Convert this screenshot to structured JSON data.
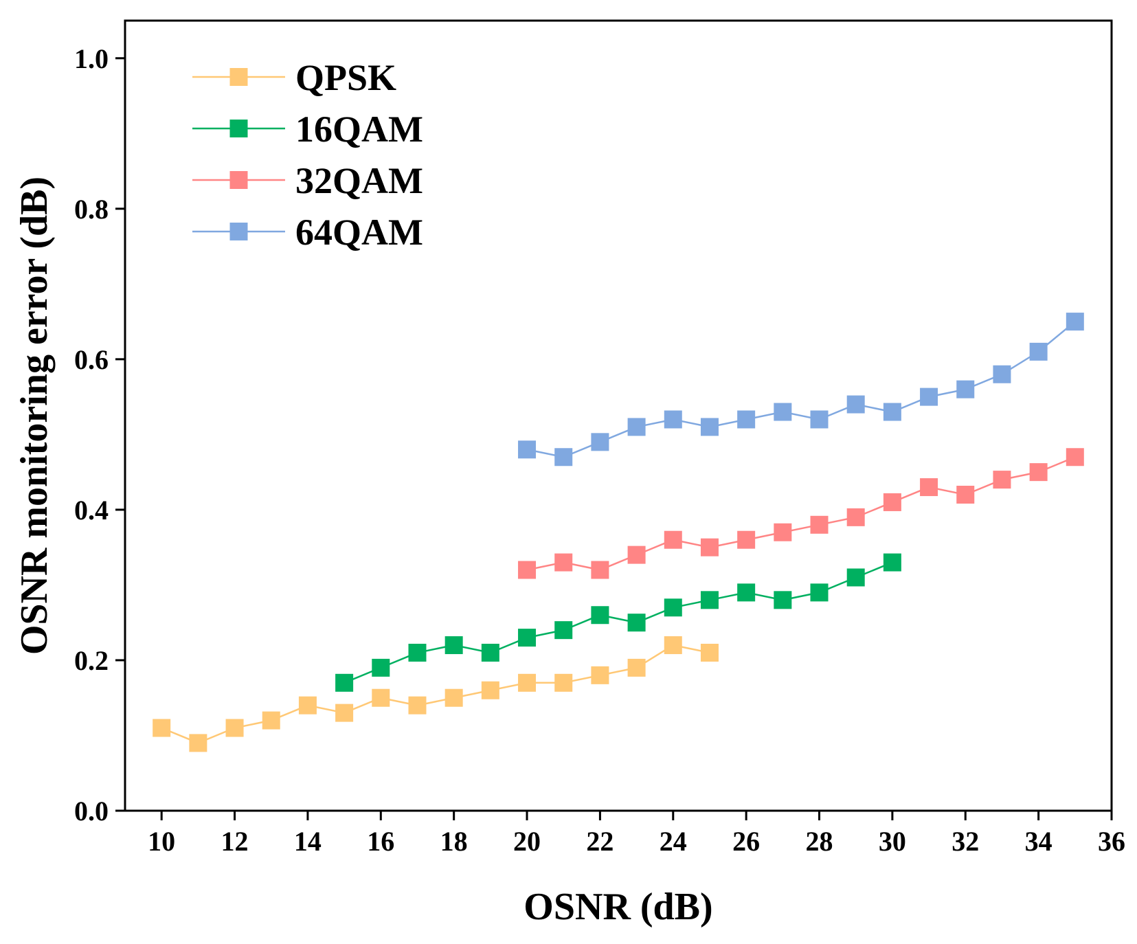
{
  "chart_data": {
    "type": "line",
    "title": "",
    "xlabel": "OSNR (dB)",
    "ylabel": "OSNR monitoring error (dB)",
    "xlim": [
      9,
      36
    ],
    "ylim": [
      0,
      1.05
    ],
    "xticks": [
      10,
      12,
      14,
      16,
      18,
      20,
      22,
      24,
      26,
      28,
      30,
      32,
      34,
      36
    ],
    "yticks": [
      0.0,
      0.2,
      0.4,
      0.6,
      0.8,
      1.0
    ],
    "xtick_labels": [
      "10",
      "12",
      "14",
      "16",
      "18",
      "20",
      "22",
      "24",
      "26",
      "28",
      "30",
      "32",
      "34",
      "36"
    ],
    "ytick_labels": [
      "0.0",
      "0.2",
      "0.4",
      "0.6",
      "0.8",
      "1.0"
    ],
    "grid": false,
    "legend_position": "top-left",
    "series": [
      {
        "name": "QPSK",
        "color": "#FFC875",
        "marker": "square",
        "x": [
          10,
          11,
          12,
          13,
          14,
          15,
          16,
          17,
          18,
          19,
          20,
          21,
          22,
          23,
          24,
          25
        ],
        "values": [
          0.11,
          0.09,
          0.11,
          0.12,
          0.14,
          0.13,
          0.15,
          0.14,
          0.15,
          0.16,
          0.17,
          0.17,
          0.18,
          0.19,
          0.22,
          0.21
        ]
      },
      {
        "name": "16QAM",
        "color": "#00B060",
        "marker": "square",
        "x": [
          15,
          16,
          17,
          18,
          19,
          20,
          21,
          22,
          23,
          24,
          25,
          26,
          27,
          28,
          29,
          30
        ],
        "values": [
          0.17,
          0.19,
          0.21,
          0.22,
          0.21,
          0.23,
          0.24,
          0.26,
          0.25,
          0.27,
          0.28,
          0.29,
          0.28,
          0.29,
          0.31,
          0.33
        ]
      },
      {
        "name": "32QAM",
        "color": "#FF8585",
        "marker": "square",
        "x": [
          20,
          21,
          22,
          23,
          24,
          25,
          26,
          27,
          28,
          29,
          30,
          31,
          32,
          33,
          34,
          35
        ],
        "values": [
          0.32,
          0.33,
          0.32,
          0.34,
          0.36,
          0.35,
          0.36,
          0.37,
          0.38,
          0.39,
          0.41,
          0.43,
          0.42,
          0.44,
          0.45,
          0.47
        ]
      },
      {
        "name": "64QAM",
        "color": "#80A8E0",
        "marker": "square",
        "x": [
          20,
          21,
          22,
          23,
          24,
          25,
          26,
          27,
          28,
          29,
          30,
          31,
          32,
          33,
          34,
          35
        ],
        "values": [
          0.48,
          0.47,
          0.49,
          0.51,
          0.52,
          0.51,
          0.52,
          0.53,
          0.52,
          0.54,
          0.53,
          0.55,
          0.56,
          0.58,
          0.61,
          0.65
        ]
      }
    ]
  }
}
